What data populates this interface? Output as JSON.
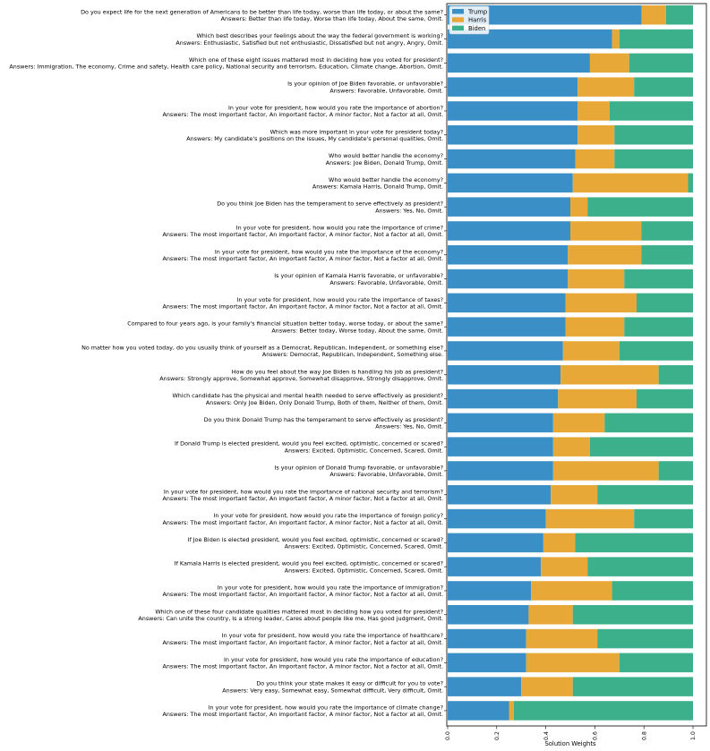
{
  "chart_data": {
    "type": "bar",
    "orientation": "horizontal",
    "stacked": true,
    "xlabel": "Solution Weights",
    "xlim": [
      0,
      1.0
    ],
    "xticks": [
      "0.0",
      "0.2",
      "0.4",
      "0.6",
      "0.8",
      "1.0"
    ],
    "legend": {
      "position": "top-left",
      "entries": [
        "Trump",
        "Harris",
        "Biden"
      ]
    },
    "colors": {
      "Trump": "#3a8fc7",
      "Harris": "#e8a838",
      "Biden": "#3cb08a"
    },
    "categories": [
      {
        "question": "Do you expect life for the next generation of Americans to be better than life today, worse than life today, or about the same?",
        "answers": "Answers: Better than life today, Worse than life today, About the same, Omit."
      },
      {
        "question": "Which best describes your feelings about the way the federal government is working?",
        "answers": "Answers: Enthusiastic, Satisfied but not enthusiastic, Dissatisfied but not angry, Angry, Omit."
      },
      {
        "question": "Which one of these eight issues mattered most in deciding how you voted for president?",
        "answers": "Answers: Immigration, The economy, Crime and safety, Health care policy, National security and terrorism, Education, Climate change, Abortion, Omit."
      },
      {
        "question": "Is your opinion of Joe Biden favorable, or unfavorable?",
        "answers": "Answers: Favorable, Unfavorable, Omit."
      },
      {
        "question": "In your vote for president, how would you rate the importance of abortion?",
        "answers": "Answers: The most important factor, An important factor, A minor factor, Not a factor at all, Omit."
      },
      {
        "question": "Which was more important in your vote for president today?",
        "answers": "Answers: My candidate's positions on the issues, My candidate's personal qualities, Omit."
      },
      {
        "question": "Who would better handle the economy?",
        "answers": "Answers: Joe Biden, Donald Trump, Omit."
      },
      {
        "question": "Who would better handle the economy?",
        "answers": "Answers: Kamala Harris, Donald Trump, Omit."
      },
      {
        "question": "Do you think Joe Biden has the temperament to serve effectively as president?",
        "answers": "Answers: Yes, No, Omit."
      },
      {
        "question": "In your vote for president, how would you rate the importance of crime?",
        "answers": "Answers: The most important factor, An important factor, A minor factor, Not a factor at all, Omit."
      },
      {
        "question": "In your vote for president, how would you rate the importance of the economy?",
        "answers": "Answers: The most important factor, An important factor, A minor factor, Not a factor at all, Omit."
      },
      {
        "question": "Is your opinion of Kamala Harris favorable, or unfavorable?",
        "answers": "Answers: Favorable, Unfavorable, Omit."
      },
      {
        "question": "In your vote for president, how would you rate the importance of taxes?",
        "answers": "Answers: The most important factor, An important factor, A minor factor, Not a factor at all, Omit."
      },
      {
        "question": "Compared to four years ago, is your family's financial situation better today, worse today, or about the same?",
        "answers": "Answers: Better today, Worse today, About the same, Omit."
      },
      {
        "question": "No matter how you voted today, do you usually think of yourself as a Democrat, Republican, Independent, or something else?",
        "answers": "Answers: Democrat, Republican, Independent, Something else."
      },
      {
        "question": "How do you feel about the way Joe Biden is handling his job as president?",
        "answers": "Answers: Strongly approve, Somewhat approve, Somewhat disapprove, Strongly disapprove, Omit."
      },
      {
        "question": "Which candidate has the physical and mental health needed to serve effectively as president?",
        "answers": "Answers: Only Joe Biden, Only Donald Trump, Both of them, Neither of them, Omit."
      },
      {
        "question": "Do you think Donald Trump has the temperament to serve effectively as president?",
        "answers": "Answers: Yes, No, Omit."
      },
      {
        "question": "If Donald Trump is elected president, would you feel excited, optimistic, concerned or scared?",
        "answers": "Answers: Excited, Optimistic, Concerned, Scared, Omit."
      },
      {
        "question": "Is your opinion of Donald Trump favorable, or unfavorable?",
        "answers": "Answers: Favorable, Unfavorable, Omit."
      },
      {
        "question": "In your vote for president, how would you rate the importance of national security and terrorism?",
        "answers": "Answers: The most important factor, An important factor, A minor factor, Not a factor at all, Omit."
      },
      {
        "question": "In your vote for president, how would you rate the importance of foreign policy?",
        "answers": "Answers: The most important factor, An important factor, A minor factor, Not a factor at all, Omit."
      },
      {
        "question": "If Joe Biden is elected president, would you feel excited, optimistic, concerned or scared?",
        "answers": "Answers: Excited, Optimistic, Concerned, Scared, Omit."
      },
      {
        "question": "If Kamala Harris is elected president, would you feel excited, optimistic, concerned or scared?",
        "answers": "Answers: Excited, Optimistic, Concerned, Scared, Omit."
      },
      {
        "question": "In your vote for president, how would you rate the importance of immigration?",
        "answers": "Answers: The most important factor, An important factor, A minor factor, Not a factor at all, Omit."
      },
      {
        "question": "Which one of these four candidate qualities mattered most in deciding how you voted for president?",
        "answers": "Answers: Can unite the country, Is a strong leader, Cares about people like me, Has good judgment, Omit."
      },
      {
        "question": "In your vote for president, how would you rate the importance of healthcare?",
        "answers": "Answers: The most important factor, An important factor, A minor factor, Not a factor at all, Omit."
      },
      {
        "question": "In your vote for president, how would you rate the importance of education?",
        "answers": "Answers: The most important factor, An important factor, A minor factor, Not a factor at all, Omit."
      },
      {
        "question": "Do you think your state makes it easy or difficult for you to vote?",
        "answers": "Answers: Very easy, Somewhat easy, Somewhat difficult, Very difficult, Omit."
      },
      {
        "question": "In your vote for president, how would you rate the importance of climate change?",
        "answers": "Answers: The most important factor, An important factor, A minor factor, Not a factor at all, Omit."
      }
    ],
    "series": [
      {
        "name": "Trump",
        "values": [
          0.79,
          0.67,
          0.58,
          0.53,
          0.53,
          0.53,
          0.52,
          0.51,
          0.5,
          0.5,
          0.49,
          0.49,
          0.48,
          0.48,
          0.47,
          0.46,
          0.45,
          0.43,
          0.43,
          0.43,
          0.42,
          0.4,
          0.39,
          0.38,
          0.34,
          0.33,
          0.32,
          0.32,
          0.3,
          0.25
        ]
      },
      {
        "name": "Harris",
        "values": [
          0.1,
          0.03,
          0.16,
          0.23,
          0.13,
          0.15,
          0.16,
          0.47,
          0.07,
          0.29,
          0.3,
          0.23,
          0.29,
          0.24,
          0.23,
          0.4,
          0.32,
          0.21,
          0.15,
          0.43,
          0.19,
          0.36,
          0.13,
          0.19,
          0.33,
          0.18,
          0.29,
          0.38,
          0.21,
          0.02
        ]
      },
      {
        "name": "Biden",
        "values": [
          0.11,
          0.3,
          0.26,
          0.24,
          0.34,
          0.32,
          0.32,
          0.02,
          0.43,
          0.21,
          0.21,
          0.28,
          0.23,
          0.28,
          0.3,
          0.14,
          0.23,
          0.36,
          0.42,
          0.14,
          0.39,
          0.24,
          0.48,
          0.43,
          0.33,
          0.49,
          0.39,
          0.3,
          0.49,
          0.73
        ]
      }
    ]
  }
}
